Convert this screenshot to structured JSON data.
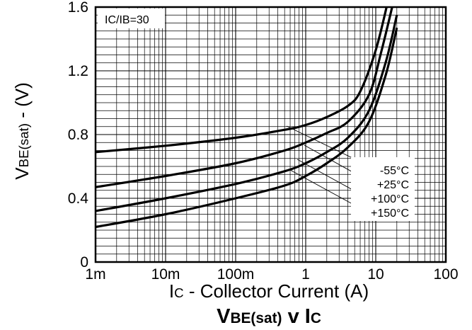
{
  "chart_data": {
    "type": "line",
    "title": {
      "main": "V",
      "sub": "BE(sat)",
      "connector": " v I",
      "tail": "C"
    },
    "xlabel": {
      "prefix": "I",
      "sub": "C",
      "rest": " - Collector Current (A)"
    },
    "ylabel": {
      "prefix": "V",
      "sub": "BE(sat)",
      "rest": " - (V)"
    },
    "x_scale": "log",
    "xlim": [
      0.001,
      100
    ],
    "ylim": [
      0,
      1.6
    ],
    "x_ticks": [
      {
        "value": 0.001,
        "label": "1m"
      },
      {
        "value": 0.01,
        "label": "10m"
      },
      {
        "value": 0.1,
        "label": "100m"
      },
      {
        "value": 1,
        "label": "1"
      },
      {
        "value": 10,
        "label": "10"
      },
      {
        "value": 100,
        "label": "100"
      }
    ],
    "y_ticks": [
      {
        "value": 0,
        "label": "0"
      },
      {
        "value": 0.4,
        "label": "0.4"
      },
      {
        "value": 0.8,
        "label": "0.8"
      },
      {
        "value": 1.2,
        "label": "1.2"
      },
      {
        "value": 1.6,
        "label": "1.6"
      }
    ],
    "grid": true,
    "condition_label": "IC/IB=30",
    "series": [
      {
        "name": "-55°C",
        "x": [
          0.001,
          0.01,
          0.1,
          0.5,
          1,
          2,
          4,
          6,
          10,
          15
        ],
        "y": [
          0.69,
          0.73,
          0.78,
          0.83,
          0.86,
          0.91,
          0.98,
          1.07,
          1.33,
          1.64
        ]
      },
      {
        "name": "+25°C",
        "x": [
          0.001,
          0.01,
          0.1,
          0.5,
          1,
          2,
          4,
          8,
          12,
          18
        ],
        "y": [
          0.47,
          0.54,
          0.62,
          0.7,
          0.75,
          0.81,
          0.88,
          1.05,
          1.32,
          1.64
        ]
      },
      {
        "name": "+100°C",
        "x": [
          0.001,
          0.01,
          0.1,
          0.5,
          1,
          2,
          4,
          8,
          14,
          20
        ],
        "y": [
          0.32,
          0.4,
          0.49,
          0.57,
          0.62,
          0.69,
          0.78,
          0.95,
          1.26,
          1.55
        ]
      },
      {
        "name": "+150°C",
        "x": [
          0.001,
          0.01,
          0.1,
          0.5,
          1,
          2,
          4,
          8,
          14,
          20
        ],
        "y": [
          0.22,
          0.3,
          0.4,
          0.48,
          0.54,
          0.62,
          0.72,
          0.88,
          1.18,
          1.47
        ]
      }
    ]
  }
}
